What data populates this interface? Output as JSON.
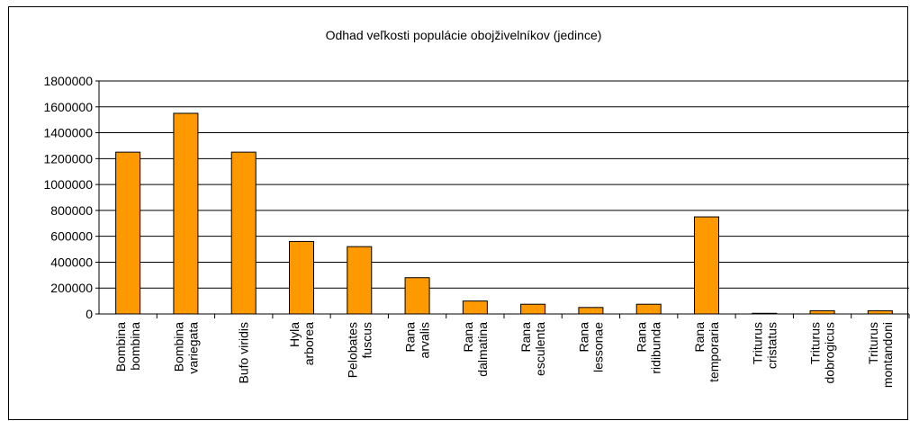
{
  "chart_data": {
    "type": "bar",
    "title": "Odhad veľkosti populácie obojživelníkov (jedince)",
    "categories": [
      "Bombina\nbombina",
      "Bombina\nvariegata",
      "Bufo viridis",
      "Hyla\narborea",
      "Pelobates\nfuscus",
      "Rana\narvalis",
      "Rana\ndalmatina",
      "Rana\nesculenta",
      "Rana\nlessonae",
      "Rana\nridibunda",
      "Rana\ntemporaria",
      "Triturus\ncristatus",
      "Triturus\ndobrogicus",
      "Triturus\nmontandoni"
    ],
    "values": [
      1250000,
      1550000,
      1250000,
      560000,
      520000,
      280000,
      100000,
      75000,
      50000,
      75000,
      750000,
      5000,
      25000,
      25000
    ],
    "color": "#ff9900",
    "ylim": [
      0,
      1800000
    ],
    "yticks": [
      0,
      200000,
      400000,
      600000,
      800000,
      1000000,
      1200000,
      1400000,
      1600000,
      1800000
    ],
    "grid": true
  }
}
